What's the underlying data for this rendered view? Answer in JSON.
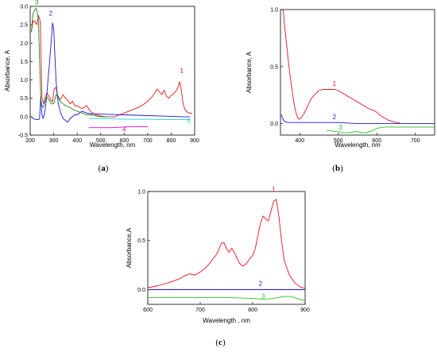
{
  "chart_data": [
    {
      "type": "line",
      "panel": "(a)",
      "panel_letter": "a",
      "xlabel": "Wavelength, nm",
      "ylabel": "Absorbance, A",
      "xlim": [
        200,
        900
      ],
      "ylim": [
        -0.5,
        3.0
      ],
      "xticks": [
        200,
        300,
        400,
        500,
        600,
        700,
        800,
        900
      ],
      "yticks": [
        -0.5,
        0.0,
        0.5,
        1.0,
        1.5,
        2.0,
        2.5,
        3.0
      ],
      "xtick_labels": [
        "200",
        "300",
        "400",
        "500",
        "600",
        "700",
        "800",
        "900"
      ],
      "ytick_labels": [
        "-0.5",
        "0.0",
        "0.5",
        "1.0",
        "1.5",
        "2.0",
        "2.5",
        "3.0"
      ],
      "grid": false,
      "series": [
        {
          "name": "1",
          "color": "#e8141b",
          "x": [
            205,
            212,
            220,
            228,
            235,
            243,
            250,
            258,
            265,
            272,
            280,
            288,
            295,
            302,
            310,
            318,
            325,
            332,
            340,
            350,
            360,
            370,
            380,
            390,
            400,
            420,
            440,
            460,
            480,
            500,
            520,
            540,
            560,
            580,
            600,
            620,
            640,
            660,
            680,
            700,
            720,
            740,
            750,
            760,
            770,
            780,
            790,
            800,
            810,
            820,
            830,
            835,
            840,
            845,
            850,
            855,
            860,
            870,
            880,
            890
          ],
          "y": [
            2.3,
            2.6,
            2.6,
            2.5,
            2.75,
            2.6,
            0.5,
            0.35,
            0.55,
            0.65,
            0.55,
            0.45,
            0.4,
            0.75,
            0.8,
            0.55,
            0.45,
            0.5,
            0.6,
            0.5,
            0.45,
            0.35,
            0.42,
            0.3,
            0.3,
            0.22,
            0.3,
            0.12,
            0.05,
            0.02,
            0.0,
            0.0,
            0.0,
            0.05,
            0.1,
            0.15,
            0.2,
            0.25,
            0.32,
            0.42,
            0.55,
            0.75,
            0.68,
            0.6,
            0.72,
            0.55,
            0.5,
            0.58,
            0.62,
            0.7,
            0.8,
            0.95,
            0.85,
            0.65,
            0.4,
            0.25,
            0.18,
            0.12,
            0.1,
            0.08
          ]
        },
        {
          "name": "2",
          "color": "#1a18cc",
          "x": [
            205,
            215,
            225,
            235,
            240,
            245,
            250,
            255,
            260,
            265,
            270,
            275,
            280,
            285,
            290,
            295,
            300,
            305,
            310,
            315,
            320,
            330,
            340,
            350,
            360,
            370,
            380,
            390,
            400,
            420,
            440,
            460,
            480,
            500,
            550,
            600,
            650,
            700,
            750,
            800,
            850,
            880
          ],
          "y": [
            -0.02,
            -0.05,
            -0.08,
            -0.08,
            -0.05,
            0.55,
            0.05,
            -0.05,
            0.05,
            0.25,
            0.55,
            0.95,
            1.3,
            1.7,
            2.1,
            2.55,
            2.4,
            1.7,
            1.0,
            0.6,
            0.35,
            0.1,
            -0.05,
            -0.1,
            -0.15,
            -0.05,
            0.0,
            0.05,
            0.05,
            0.15,
            0.1,
            0.08,
            0.08,
            0.07,
            0.06,
            0.05,
            0.04,
            0.03,
            0.02,
            0.01,
            0.0,
            0.0
          ]
        },
        {
          "name": "3",
          "color": "#1c8a1a",
          "x": [
            205,
            212,
            220,
            225,
            230,
            235,
            240,
            245,
            250,
            255,
            260,
            270,
            280,
            290,
            300,
            310,
            320,
            330,
            340,
            350,
            360,
            370,
            380,
            400,
            420,
            440,
            460,
            480,
            500,
            520,
            540
          ],
          "y": [
            2.3,
            2.8,
            2.9,
            2.95,
            2.85,
            2.6,
            1.5,
            0.5,
            0.3,
            0.25,
            0.35,
            0.55,
            0.45,
            0.35,
            0.35,
            0.6,
            0.55,
            0.4,
            0.35,
            0.3,
            0.28,
            0.25,
            0.2,
            0.15,
            0.1,
            0.05,
            0.05,
            0.02,
            0.0,
            0.0,
            0.0
          ]
        },
        {
          "name": "4",
          "color": "#d600d6",
          "x": [
            450,
            500,
            550,
            600,
            650,
            700
          ],
          "y": [
            -0.3,
            -0.3,
            -0.3,
            -0.28,
            -0.27,
            -0.27
          ]
        },
        {
          "name": "5",
          "color": "#22ccdd",
          "x": [
            450,
            500,
            550,
            600,
            650,
            700,
            750,
            800,
            850,
            880
          ],
          "y": [
            -0.05,
            -0.05,
            -0.06,
            -0.07,
            -0.07,
            -0.07,
            -0.08,
            -0.08,
            -0.08,
            -0.08
          ]
        }
      ],
      "series_labels": [
        {
          "text": "1",
          "x": 845,
          "y": 1.2,
          "color": "#e8141b"
        },
        {
          "text": "2",
          "x": 287,
          "y": 2.75,
          "color": "#1a18cc"
        },
        {
          "text": "3",
          "x": 228,
          "y": 3.05,
          "color": "#1c8a1a"
        },
        {
          "text": "4",
          "x": 600,
          "y": -0.4,
          "color": "#d600d6"
        },
        {
          "text": "5",
          "x": 875,
          "y": -0.18,
          "color": "#22ccdd"
        }
      ]
    },
    {
      "type": "line",
      "panel": "(b)",
      "panel_letter": "b",
      "xlabel": "Wavelength, nm",
      "ylabel": "Absorbance, A",
      "xlim": [
        350,
        750
      ],
      "ylim": [
        -0.1,
        1.0
      ],
      "xticks": [
        400,
        500,
        600,
        700
      ],
      "yticks": [
        0.0,
        0.5,
        1.0
      ],
      "xtick_labels": [
        "400",
        "500",
        "600",
        "700"
      ],
      "ytick_labels": [
        "0.0",
        "0.5",
        "1.0"
      ],
      "grid": false,
      "series": [
        {
          "name": "1",
          "color": "#e8141b",
          "x": [
            357,
            360,
            365,
            370,
            375,
            380,
            385,
            390,
            395,
            400,
            410,
            420,
            430,
            440,
            450,
            460,
            470,
            480,
            490,
            500,
            510,
            520,
            530,
            540,
            550,
            560,
            570,
            580,
            590,
            600,
            610,
            620,
            630,
            640,
            650,
            660
          ],
          "y": [
            1.0,
            0.88,
            0.72,
            0.56,
            0.42,
            0.3,
            0.18,
            0.1,
            0.05,
            0.04,
            0.08,
            0.15,
            0.22,
            0.26,
            0.29,
            0.3,
            0.3,
            0.3,
            0.3,
            0.29,
            0.27,
            0.25,
            0.23,
            0.21,
            0.19,
            0.17,
            0.15,
            0.13,
            0.12,
            0.1,
            0.07,
            0.05,
            0.03,
            0.02,
            0.01,
            0.01
          ]
        },
        {
          "name": "2",
          "color": "#1a18cc",
          "x": [
            352,
            355,
            360,
            370,
            400,
            450,
            500,
            550,
            600,
            650,
            700,
            750
          ],
          "y": [
            0.08,
            0.05,
            0.02,
            0.01,
            0.01,
            0.01,
            0.01,
            0.0,
            0.0,
            0.0,
            0.0,
            0.0
          ]
        },
        {
          "name": "3",
          "color": "#22c422",
          "x": [
            470,
            480,
            490,
            500,
            510,
            520,
            530,
            540,
            550,
            560,
            570,
            580,
            590,
            600,
            620,
            640,
            660,
            680,
            700,
            750
          ],
          "y": [
            -0.06,
            -0.06,
            -0.07,
            -0.07,
            -0.08,
            -0.08,
            -0.08,
            -0.07,
            -0.07,
            -0.08,
            -0.08,
            -0.07,
            -0.06,
            -0.04,
            -0.03,
            -0.03,
            -0.03,
            -0.03,
            -0.03,
            -0.03
          ]
        }
      ],
      "series_labels": [
        {
          "text": "1",
          "x": 490,
          "y": 0.33,
          "color": "#e8141b"
        },
        {
          "text": "2",
          "x": 490,
          "y": 0.04,
          "color": "#1a18cc"
        },
        {
          "text": "3",
          "x": 505,
          "y": -0.05,
          "color": "#22c422"
        }
      ]
    },
    {
      "type": "line",
      "panel": "(c)",
      "panel_letter": "c",
      "xlabel": "Wavelength , nm",
      "ylabel": "Absorbance,A",
      "xlim": [
        600,
        900
      ],
      "ylim": [
        -0.15,
        1.0
      ],
      "xticks": [
        600,
        700,
        800,
        900
      ],
      "yticks": [
        0.0,
        0.5,
        1.0
      ],
      "xtick_labels": [
        "600",
        "700",
        "800",
        "900"
      ],
      "ytick_labels": [
        "0.0",
        "0.5",
        "1.0"
      ],
      "grid": false,
      "series": [
        {
          "name": "1",
          "color": "#e8141b",
          "x": [
            600,
            620,
            640,
            660,
            670,
            680,
            690,
            700,
            710,
            720,
            725,
            730,
            735,
            740,
            745,
            750,
            755,
            760,
            765,
            770,
            775,
            780,
            785,
            790,
            795,
            800,
            805,
            810,
            815,
            820,
            825,
            830,
            835,
            840,
            845,
            850,
            855,
            860,
            870,
            880,
            890,
            900
          ],
          "y": [
            0.02,
            0.04,
            0.07,
            0.11,
            0.14,
            0.16,
            0.15,
            0.18,
            0.22,
            0.28,
            0.32,
            0.35,
            0.4,
            0.47,
            0.48,
            0.42,
            0.38,
            0.42,
            0.38,
            0.32,
            0.27,
            0.24,
            0.25,
            0.28,
            0.32,
            0.35,
            0.42,
            0.55,
            0.68,
            0.75,
            0.72,
            0.7,
            0.8,
            0.9,
            0.92,
            0.75,
            0.5,
            0.3,
            0.15,
            0.07,
            0.03,
            0.01
          ]
        },
        {
          "name": "2",
          "color": "#1a18cc",
          "x": [
            600,
            700,
            800,
            900
          ],
          "y": [
            0.0,
            0.0,
            0.0,
            0.0
          ]
        },
        {
          "name": "3",
          "color": "#22c422",
          "x": [
            600,
            650,
            700,
            750,
            800,
            820,
            840,
            860,
            870,
            880,
            890,
            900
          ],
          "y": [
            -0.08,
            -0.08,
            -0.08,
            -0.08,
            -0.09,
            -0.1,
            -0.09,
            -0.07,
            -0.07,
            -0.08,
            -0.1,
            -0.11
          ]
        }
      ],
      "series_labels": [
        {
          "text": "1",
          "x": 840,
          "y": 1.0,
          "color": "#e8141b"
        },
        {
          "text": "2",
          "x": 815,
          "y": 0.04,
          "color": "#1a18cc"
        },
        {
          "text": "3",
          "x": 820,
          "y": -0.09,
          "color": "#22c422"
        }
      ]
    }
  ]
}
